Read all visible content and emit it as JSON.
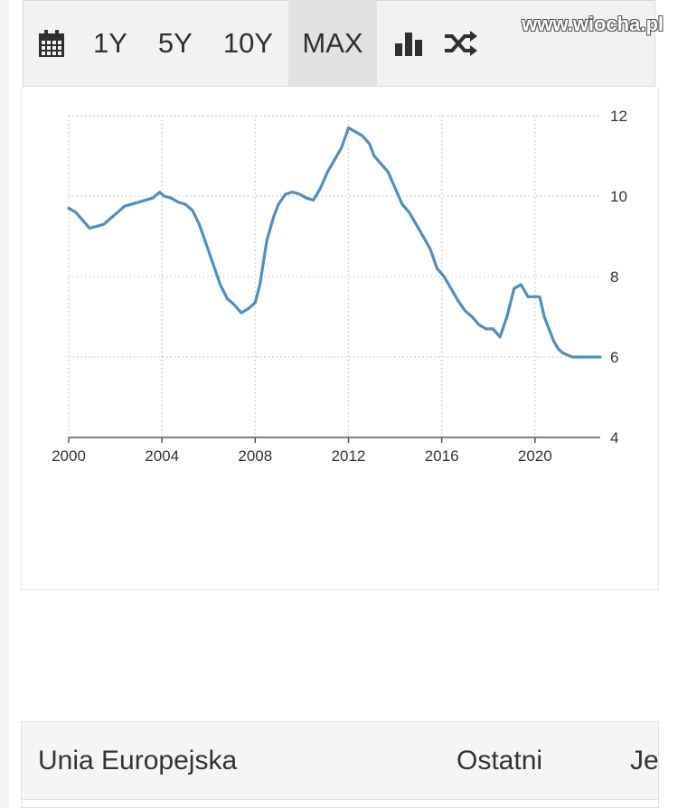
{
  "toolbar": {
    "calendar_icon": "calendar-icon",
    "ranges": [
      "1Y",
      "5Y",
      "10Y",
      "MAX"
    ],
    "active_range": "MAX",
    "bar_chart_icon": "bar-chart-icon",
    "shuffle_icon": "shuffle-icon"
  },
  "watermark": "www.wiocha.pl",
  "colors": {
    "line": "#4f8ec2",
    "grid": "#cfcfcf",
    "toolbar_bg": "#f2f2f2"
  },
  "chart_data": {
    "type": "line",
    "title": "",
    "xlabel": "",
    "ylabel": "",
    "xlim": [
      2000,
      2022.8
    ],
    "ylim": [
      4,
      12
    ],
    "x_ticks": [
      2000,
      2004,
      2008,
      2012,
      2016,
      2020
    ],
    "y_ticks": [
      4,
      6,
      8,
      10,
      12
    ],
    "y_axis_position": "right",
    "grid": true,
    "series": [
      {
        "x": [
          2000.0,
          2000.3,
          2000.6,
          2000.9,
          2001.2,
          2001.5,
          2001.8,
          2002.1,
          2002.4,
          2002.7,
          2003.0,
          2003.3,
          2003.6,
          2003.9,
          2004.1,
          2004.4,
          2004.7,
          2005.0,
          2005.3,
          2005.6,
          2005.9,
          2006.2,
          2006.5,
          2006.8,
          2007.1,
          2007.4,
          2007.7,
          2008.0,
          2008.2,
          2008.5,
          2008.8,
          2009.0,
          2009.3,
          2009.6,
          2009.9,
          2010.2,
          2010.5,
          2010.8,
          2011.1,
          2011.4,
          2011.7,
          2012.0,
          2012.3,
          2012.6,
          2012.9,
          2013.1,
          2013.4,
          2013.7,
          2014.0,
          2014.3,
          2014.6,
          2014.9,
          2015.2,
          2015.5,
          2015.8,
          2016.1,
          2016.4,
          2016.7,
          2017.0,
          2017.3,
          2017.6,
          2017.9,
          2018.2,
          2018.5,
          2018.8,
          2019.1,
          2019.4,
          2019.7,
          2020.0,
          2020.2,
          2020.4,
          2020.6,
          2020.8,
          2021.0,
          2021.2,
          2021.4,
          2021.6,
          2021.8,
          2022.0,
          2022.2,
          2022.5,
          2022.8
        ],
        "values": [
          9.7,
          9.6,
          9.4,
          9.2,
          9.25,
          9.3,
          9.45,
          9.6,
          9.75,
          9.8,
          9.85,
          9.9,
          9.95,
          10.1,
          10.0,
          9.95,
          9.85,
          9.8,
          9.65,
          9.3,
          8.8,
          8.3,
          7.8,
          7.45,
          7.3,
          7.1,
          7.2,
          7.35,
          7.8,
          8.9,
          9.5,
          9.8,
          10.05,
          10.1,
          10.05,
          9.95,
          9.9,
          10.2,
          10.6,
          10.9,
          11.2,
          11.7,
          11.6,
          11.5,
          11.3,
          11.0,
          10.8,
          10.6,
          10.2,
          9.8,
          9.6,
          9.3,
          9.0,
          8.7,
          8.2,
          8.0,
          7.7,
          7.4,
          7.15,
          7.0,
          6.8,
          6.7,
          6.7,
          6.5,
          7.0,
          7.7,
          7.8,
          7.5,
          7.5,
          7.5,
          7.0,
          6.7,
          6.4,
          6.2,
          6.1,
          6.05,
          6.0,
          6.0,
          6.0,
          6.0,
          6.0,
          6.0
        ]
      }
    ]
  },
  "table": {
    "col1": "Unia Europejska",
    "col2": "Ostatni",
    "col3": "Je"
  }
}
